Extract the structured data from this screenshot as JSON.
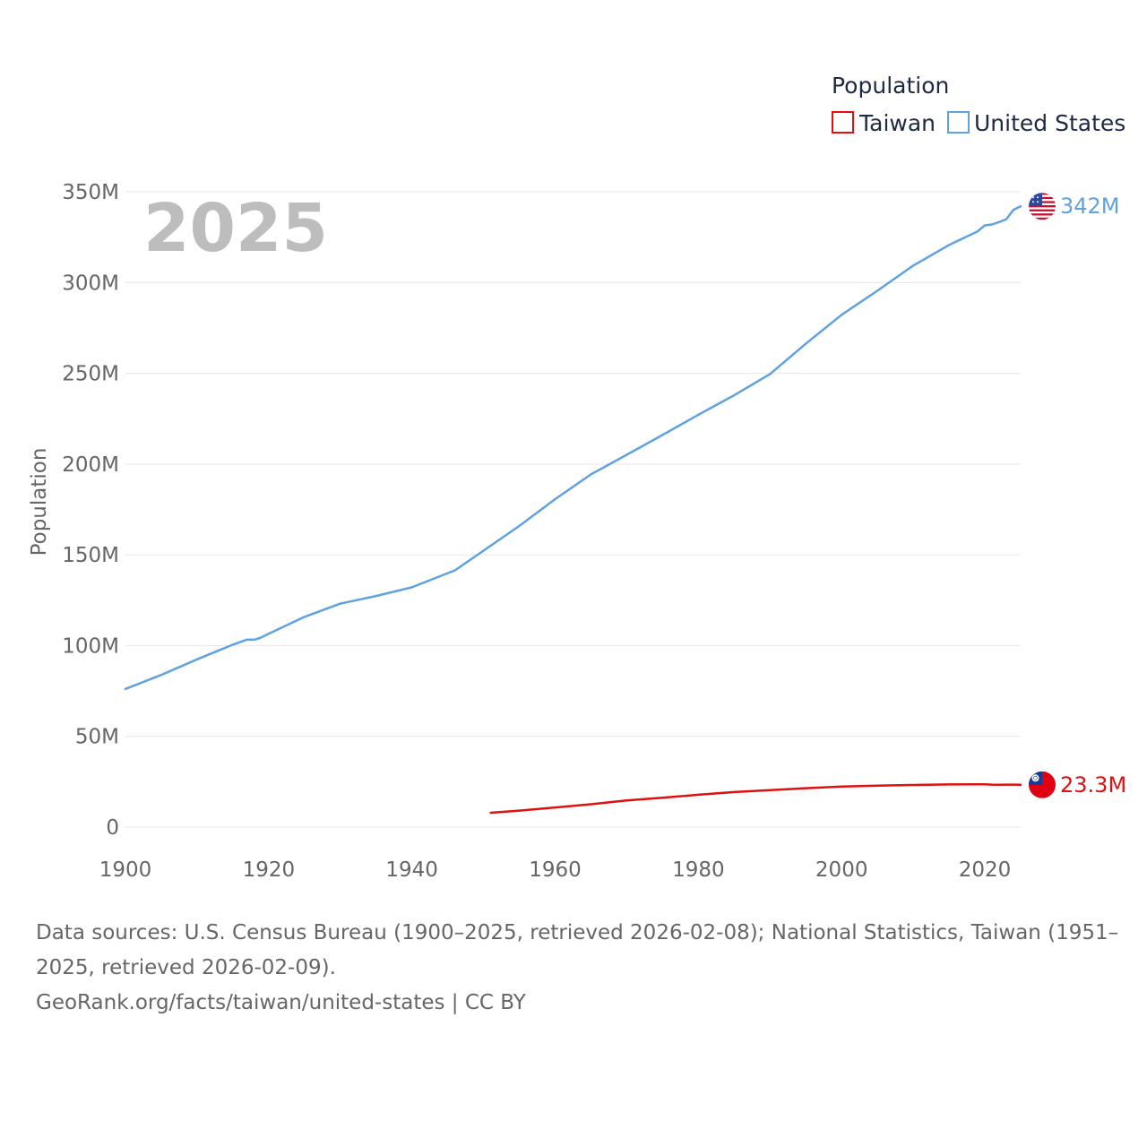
{
  "chart_data": {
    "type": "line",
    "title": "",
    "year_label": "2025",
    "xlabel": "",
    "ylabel": "Population",
    "xlim": [
      1900,
      2025
    ],
    "ylim": [
      0,
      350000000
    ],
    "x_ticks": [
      1900,
      1920,
      1940,
      1960,
      1980,
      2000,
      2020
    ],
    "x_tick_labels": [
      "1900",
      "1920",
      "1940",
      "1960",
      "1980",
      "2000",
      "2020"
    ],
    "y_ticks": [
      0,
      50000000,
      100000000,
      150000000,
      200000000,
      250000000,
      300000000,
      350000000
    ],
    "y_tick_labels": [
      "0",
      "50M",
      "100M",
      "150M",
      "200M",
      "250M",
      "300M",
      "350M"
    ],
    "legend": {
      "title": "Population",
      "entries": [
        "Taiwan",
        "United States"
      ],
      "position": "top-right"
    },
    "series": [
      {
        "name": "United States",
        "color": "#5fa2e0",
        "end_label": "342M",
        "flag": "us-flag-icon",
        "points": [
          [
            1900,
            76.1
          ],
          [
            1905,
            83.8
          ],
          [
            1910,
            92.4
          ],
          [
            1915,
            100.5
          ],
          [
            1917,
            103.3
          ],
          [
            1918,
            103.2
          ],
          [
            1919,
            104.5
          ],
          [
            1920,
            106.5
          ],
          [
            1925,
            115.8
          ],
          [
            1930,
            123.1
          ],
          [
            1935,
            127.3
          ],
          [
            1940,
            132.1
          ],
          [
            1945,
            139.9
          ],
          [
            1946,
            141.4
          ],
          [
            1950,
            152.3
          ],
          [
            1955,
            165.9
          ],
          [
            1960,
            180.7
          ],
          [
            1965,
            194.3
          ],
          [
            1970,
            205.1
          ],
          [
            1975,
            216.0
          ],
          [
            1980,
            227.2
          ],
          [
            1985,
            237.9
          ],
          [
            1990,
            249.6
          ],
          [
            1995,
            266.3
          ],
          [
            2000,
            282.2
          ],
          [
            2005,
            295.5
          ],
          [
            2010,
            309.3
          ],
          [
            2015,
            320.7
          ],
          [
            2019,
            328.2
          ],
          [
            2020,
            331.5
          ],
          [
            2021,
            332.0
          ],
          [
            2022,
            333.3
          ],
          [
            2023,
            334.9
          ],
          [
            2024,
            340.1
          ],
          [
            2025,
            342.0
          ]
        ]
      },
      {
        "name": "Taiwan",
        "color": "#e01010",
        "end_label": "23.3M",
        "flag": "taiwan-flag-icon",
        "points": [
          [
            1951,
            7.9
          ],
          [
            1955,
            9.1
          ],
          [
            1960,
            10.8
          ],
          [
            1965,
            12.6
          ],
          [
            1970,
            14.7
          ],
          [
            1975,
            16.2
          ],
          [
            1980,
            17.8
          ],
          [
            1985,
            19.3
          ],
          [
            1990,
            20.4
          ],
          [
            1995,
            21.4
          ],
          [
            2000,
            22.3
          ],
          [
            2005,
            22.8
          ],
          [
            2010,
            23.2
          ],
          [
            2015,
            23.5
          ],
          [
            2019,
            23.6
          ],
          [
            2020,
            23.6
          ],
          [
            2021,
            23.4
          ],
          [
            2022,
            23.3
          ],
          [
            2023,
            23.4
          ],
          [
            2024,
            23.4
          ],
          [
            2025,
            23.3
          ]
        ]
      }
    ]
  },
  "footer": {
    "sources_line": "Data sources: U.S. Census Bureau (1900–2025, retrieved 2026-02-08); National Statistics, Taiwan (1951–2025, retrieved 2026-02-09).",
    "attribution": "GeoRank.org/facts/taiwan/united-states | CC BY"
  }
}
